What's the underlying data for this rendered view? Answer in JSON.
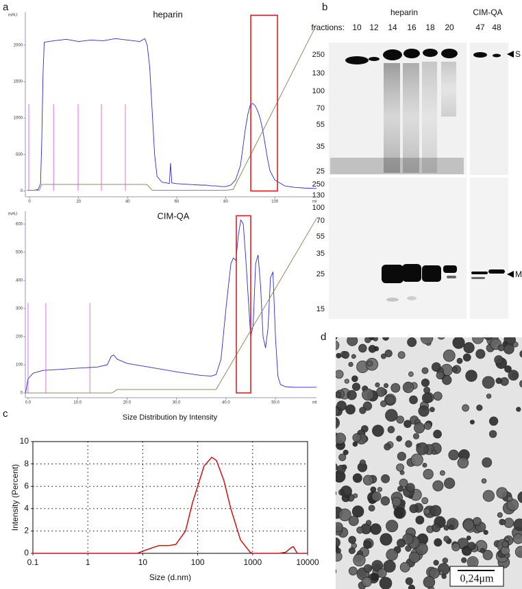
{
  "panel_labels": [
    "a",
    "b",
    "c",
    "d"
  ],
  "chart_data": [
    {
      "type": "line",
      "title": "heparin",
      "ylabel": "mAU",
      "xlabel": "ml",
      "xlim": [
        -1.7,
        117
      ],
      "ylim": [
        -80,
        2450
      ],
      "xticks": [
        0,
        20,
        40,
        60,
        80,
        100
      ],
      "yticks": [
        0,
        500,
        1000,
        1500,
        2000
      ],
      "series": [
        {
          "color": "#2a2ad0",
          "x": [
            -1,
            2,
            3.5,
            4.5,
            5,
            5.5,
            6,
            10,
            15,
            20,
            25,
            30,
            35,
            40,
            45,
            47,
            48,
            49,
            50,
            51,
            52,
            54,
            56,
            57,
            57.5,
            58,
            60,
            65,
            70,
            72,
            74,
            76,
            78,
            80,
            82,
            84,
            86,
            87,
            88,
            89,
            90,
            91,
            92,
            93,
            94,
            95,
            96,
            97,
            98,
            100,
            104,
            108,
            112,
            117
          ],
          "values": [
            10,
            10,
            20,
            100,
            700,
            1600,
            2040,
            2060,
            2080,
            2050,
            2070,
            2060,
            2090,
            2070,
            2050,
            2090,
            2000,
            1700,
            1100,
            500,
            200,
            120,
            110,
            100,
            380,
            110,
            100,
            90,
            80,
            80,
            70,
            70,
            60,
            60,
            80,
            150,
            350,
            600,
            850,
            1050,
            1180,
            1200,
            1170,
            1100,
            1000,
            850,
            650,
            450,
            280,
            150,
            70,
            50,
            40,
            35
          ]
        },
        {
          "color": "#8b7a50",
          "x": [
            -1,
            4,
            5,
            47,
            48,
            50,
            80,
            83,
            117
          ],
          "values": [
            10,
            10,
            90,
            90,
            85,
            10,
            10,
            20,
            2280
          ]
        }
      ],
      "fraction_marks": {
        "color": "#e070e0",
        "x": [
          -0.3,
          9.8,
          19.8,
          29.3,
          39.1
        ],
        "height": 1190
      },
      "highlight": {
        "color": "#e02020",
        "x": [
          90.2,
          101.1
        ],
        "y": [
          0,
          2410
        ]
      }
    },
    {
      "type": "line",
      "title": "CIM-QA",
      "ylabel": "mAU",
      "xlabel": "ml",
      "xlim": [
        -0.55,
        58.3
      ],
      "ylim": [
        -17,
        646
      ],
      "xticks": [
        {
          "value": 0,
          "label": "0.0"
        },
        {
          "value": 10,
          "label": "10.0"
        },
        {
          "value": 20,
          "label": "20.0"
        },
        {
          "value": 30,
          "label": "30.0"
        },
        {
          "value": 40,
          "label": "40.0"
        },
        {
          "value": 50,
          "label": "50.0"
        }
      ],
      "yticks": [
        0,
        100,
        200,
        300,
        400,
        500,
        600
      ],
      "series": [
        {
          "color": "#2a2ad0",
          "x": [
            -0.5,
            0,
            1,
            3,
            6,
            10,
            14,
            16,
            16.8,
            17.3,
            18,
            20,
            25,
            30,
            35,
            37,
            38,
            39,
            40,
            41,
            41.5,
            42,
            42.5,
            43,
            43.5,
            44,
            45,
            45.5,
            46,
            46.5,
            47,
            47.5,
            48,
            48.5,
            49,
            49.5,
            50,
            50.5,
            51,
            52,
            54,
            58.3
          ],
          "values": [
            0,
            50,
            70,
            80,
            83,
            88,
            92,
            100,
            130,
            135,
            120,
            105,
            90,
            75,
            62,
            60,
            65,
            120,
            300,
            460,
            480,
            470,
            560,
            615,
            600,
            480,
            200,
            240,
            460,
            490,
            380,
            200,
            160,
            230,
            410,
            430,
            200,
            60,
            30,
            22,
            20,
            20
          ]
        },
        {
          "color": "#8b7a50",
          "x": [
            -0.5,
            17,
            18,
            38,
            58.3
          ],
          "values": [
            0,
            0,
            12,
            12,
            620
          ]
        }
      ],
      "fraction_marks": {
        "color": "#e070e0",
        "x": [
          0,
          3.6,
          12.5
        ],
        "height": 320
      },
      "highlight": {
        "color": "#e02020",
        "x": [
          42.1,
          45.0
        ],
        "y": [
          0,
          630
        ]
      }
    },
    {
      "type": "line",
      "title": "Size Distribution by Intensity",
      "ylabel": "Intensity (Percent)",
      "xlabel": "Size (d.nm)",
      "log_x": true,
      "grid": true,
      "xlim": [
        0.1,
        10000
      ],
      "ylim": [
        0,
        10
      ],
      "xticks": [
        0.1,
        1,
        10,
        100,
        1000,
        10000
      ],
      "yticks": [
        0,
        2,
        4,
        6,
        8,
        10
      ],
      "series": [
        {
          "color": "#d01010",
          "x": [
            0.1,
            8,
            10,
            15,
            20,
            30,
            40,
            60,
            80,
            100,
            130,
            180,
            220,
            300,
            400,
            600,
            900,
            1000,
            3000,
            4000,
            5000,
            5500,
            6500,
            10000
          ],
          "values": [
            0,
            0,
            0.2,
            0.5,
            0.7,
            0.7,
            0.8,
            2,
            4.5,
            6,
            7.8,
            8.6,
            8.3,
            6.5,
            4,
            1.2,
            0.1,
            0,
            0,
            0.1,
            0.5,
            0.6,
            0,
            0
          ]
        }
      ]
    }
  ],
  "blot": {
    "groups": [
      "heparin",
      "CIM-QA"
    ],
    "fractions_label": "fractions:",
    "lanes": [
      10,
      12,
      14,
      16,
      18,
      20,
      47,
      48
    ],
    "markers_top": [
      250,
      130,
      100,
      70,
      55,
      35,
      25
    ],
    "markers_bottom": [
      250,
      130,
      100,
      70,
      55,
      35,
      25,
      15
    ],
    "bands": [
      "S",
      "M"
    ]
  },
  "scale_bar": "0,24μm"
}
